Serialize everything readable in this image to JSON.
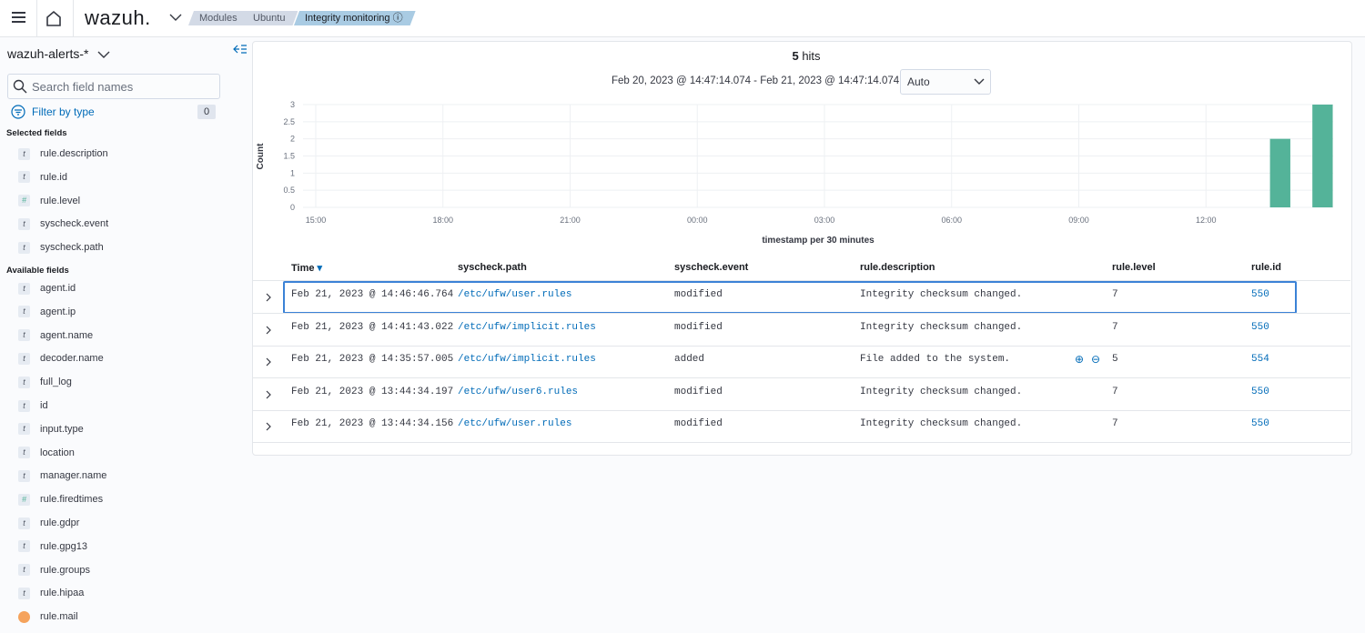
{
  "topbar": {
    "logo": "wazuh.",
    "breadcrumbs": [
      "Modules",
      "Ubuntu",
      "Integrity monitoring"
    ]
  },
  "sidebar": {
    "index_pattern": "wazuh-alerts-*",
    "search_placeholder": "Search field names",
    "filter_label": "Filter by type",
    "filter_count": 0,
    "selected_heading": "Selected fields",
    "selected_fields": [
      {
        "type": "t",
        "name": "rule.description"
      },
      {
        "type": "t",
        "name": "rule.id"
      },
      {
        "type": "#",
        "name": "rule.level"
      },
      {
        "type": "t",
        "name": "syscheck.event"
      },
      {
        "type": "t",
        "name": "syscheck.path"
      }
    ],
    "available_heading": "Available fields",
    "available_fields": [
      {
        "type": "t",
        "name": "agent.id"
      },
      {
        "type": "t",
        "name": "agent.ip"
      },
      {
        "type": "t",
        "name": "agent.name"
      },
      {
        "type": "t",
        "name": "decoder.name"
      },
      {
        "type": "t",
        "name": "full_log"
      },
      {
        "type": "t",
        "name": "id"
      },
      {
        "type": "t",
        "name": "input.type"
      },
      {
        "type": "t",
        "name": "location"
      },
      {
        "type": "t",
        "name": "manager.name"
      },
      {
        "type": "#",
        "name": "rule.firedtimes"
      },
      {
        "type": "t",
        "name": "rule.gdpr"
      },
      {
        "type": "t",
        "name": "rule.gpg13"
      },
      {
        "type": "t",
        "name": "rule.groups"
      },
      {
        "type": "t",
        "name": "rule.hipaa"
      },
      {
        "name": "rule.mail"
      }
    ]
  },
  "main": {
    "hits": 5,
    "hits_label": "hits",
    "time_range": "Feb 20, 2023 @ 14:47:14.074 - Feb 21, 2023 @ 14:47:14.074",
    "interval": "Auto",
    "histogram": {
      "type": "histogram",
      "y_label": "Count",
      "x_label": "timestamp per 30 minutes",
      "ylim": [
        0,
        3
      ],
      "yticks": [
        0,
        0.5,
        1,
        1.5,
        2,
        2.5,
        3
      ],
      "xlim": [
        14.7,
        39
      ],
      "xticks": [
        {
          "value": 15,
          "label": "15:00"
        },
        {
          "value": 18,
          "label": "18:00"
        },
        {
          "value": 21,
          "label": "21:00"
        },
        {
          "value": 24,
          "label": "00:00"
        },
        {
          "value": 27,
          "label": "03:00"
        },
        {
          "value": 30,
          "label": "06:00"
        },
        {
          "value": 33,
          "label": "09:00"
        },
        {
          "value": 36,
          "label": "12:00"
        }
      ],
      "bins": [
        37.5,
        38,
        38.5,
        39
      ],
      "values": [
        2,
        0,
        3
      ],
      "color": "#54b399",
      "grid": true
    },
    "table": {
      "columns": [
        "Time",
        "syscheck.path",
        "syscheck.event",
        "rule.description",
        "rule.level",
        "rule.id"
      ],
      "rows": [
        [
          "Feb 21, 2023 @ 14:46:46.764",
          "/etc/ufw/user.rules",
          "modified",
          "Integrity checksum changed.",
          7,
          550
        ],
        [
          "Feb 21, 2023 @ 14:41:43.022",
          "/etc/ufw/implicit.rules",
          "modified",
          "Integrity checksum changed.",
          7,
          550
        ],
        [
          "Feb 21, 2023 @ 14:35:57.005",
          "/etc/ufw/implicit.rules",
          "added",
          "File added to the system.",
          5,
          554
        ],
        [
          "Feb 21, 2023 @ 13:44:34.197",
          "/etc/ufw/user6.rules",
          "modified",
          "Integrity checksum changed.",
          7,
          550
        ],
        [
          "Feb 21, 2023 @ 13:44:34.156",
          "/etc/ufw/user.rules",
          "modified",
          "Integrity checksum changed.",
          7,
          550
        ]
      ]
    }
  }
}
